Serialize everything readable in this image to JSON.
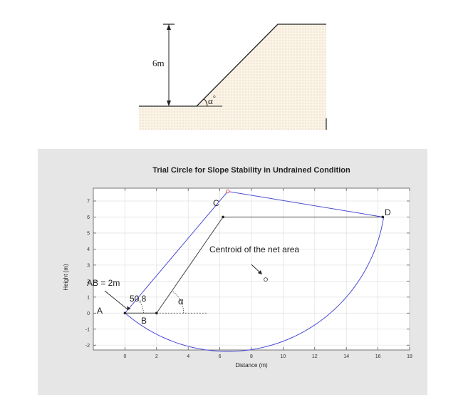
{
  "sketch": {
    "height_label": "6m",
    "angle_symbol": "α",
    "degree_symbol": "°"
  },
  "chart_data": {
    "type": "line",
    "title": "Trial Circle for Slope Stability in Undrained Condition",
    "xlabel": "Distance (m)",
    "ylabel": "Height (m)",
    "xlim": [
      -2,
      18
    ],
    "ylim": [
      -2.3,
      7.8
    ],
    "x_ticks": [
      0,
      2,
      4,
      6,
      8,
      10,
      12,
      14,
      16,
      18
    ],
    "y_ticks": [
      -2,
      -1,
      0,
      1,
      2,
      3,
      4,
      5,
      6,
      7
    ],
    "grid": true,
    "slope_profile": {
      "x": [
        0,
        2,
        6.2,
        16.3
      ],
      "y": [
        0,
        0,
        6,
        6
      ],
      "color": "#444444"
    },
    "trial_boundary": {
      "x": [
        0,
        6.5,
        16.3
      ],
      "y": [
        0,
        7.6,
        6
      ],
      "color": "#4a4ad8"
    },
    "trial_arc": {
      "center": [
        6.5,
        7.6
      ],
      "radius": 9.99,
      "start_point": [
        0,
        0
      ],
      "end_point": [
        16.3,
        6
      ],
      "color": "#4a4ad8"
    },
    "center_marker": {
      "x": 6.5,
      "y": 7.6,
      "color": "#e05050"
    },
    "centroid": {
      "x": 8.9,
      "y": 2.1
    },
    "points": [
      {
        "label": "A",
        "x": 0,
        "y": 0
      },
      {
        "label": "B",
        "x": 2,
        "y": 0
      },
      {
        "label": "C",
        "x": 6.2,
        "y": 6
      },
      {
        "label": "D",
        "x": 16.3,
        "y": 6
      }
    ],
    "annotations": {
      "centroid_label": "Centroid of the net area",
      "ab_label": "AB = 2m",
      "angle_a_value": "50.8",
      "angle_b_symbol": "α"
    }
  }
}
